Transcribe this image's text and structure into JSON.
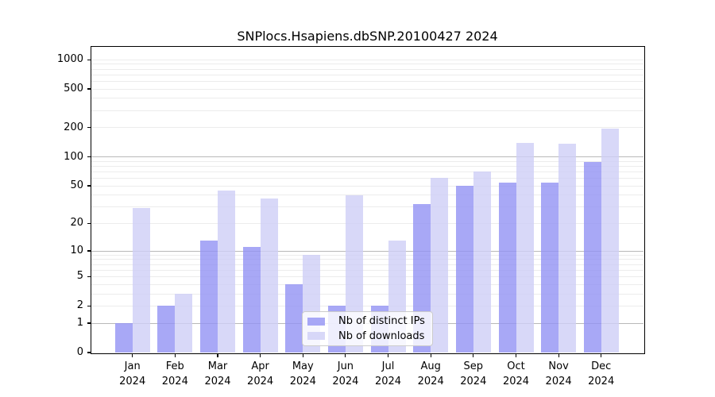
{
  "title": "SNPlocs.Hsapiens.dbSNP.20100427 2024",
  "legend": {
    "items": [
      {
        "label": "Nb of distinct IPs",
        "color": "rgba(146,146,244,0.8)"
      },
      {
        "label": "Nb of downloads",
        "color": "rgba(206,206,246,0.8)"
      }
    ]
  },
  "y_axis": {
    "tick_labels": [
      "0",
      "1",
      "2",
      "5",
      "10",
      "20",
      "50",
      "100",
      "200",
      "500",
      "1000"
    ]
  },
  "x_axis": {
    "year_label": "2024"
  },
  "chart_data": {
    "type": "bar",
    "title": "SNPlocs.Hsapiens.dbSNP.20100427 2024",
    "categories": [
      "Jan",
      "Feb",
      "Mar",
      "Apr",
      "May",
      "Jun",
      "Jul",
      "Aug",
      "Sep",
      "Oct",
      "Nov",
      "Dec"
    ],
    "category_year": "2024",
    "series": [
      {
        "name": "Nb of distinct IPs",
        "values": [
          1,
          2,
          13,
          11,
          4,
          2,
          2,
          32,
          50,
          54,
          54,
          88
        ],
        "color": "rgba(146,146,244,0.8)"
      },
      {
        "name": "Nb of downloads",
        "values": [
          29,
          3,
          45,
          37,
          9,
          40,
          13,
          61,
          71,
          140,
          138,
          195
        ],
        "color": "rgba(206,206,246,0.8)"
      }
    ],
    "y_scale": "log1p",
    "y_ticks": [
      0,
      1,
      2,
      5,
      10,
      20,
      50,
      100,
      200,
      500,
      1000
    ],
    "ylim": [
      0,
      1340
    ],
    "grid": "horizontal, minor ticks 2-9 per decade",
    "legend_position": "lower center"
  },
  "colors": {
    "background": "#ffffff",
    "axis": "#000000",
    "grid_minor": "#ececec",
    "grid_major": "#b9b9b9",
    "bar_ips_rendered": "#a8a8f6",
    "bar_downloads_rendered": "#d8d8f8",
    "legend_border": "#cccccc"
  }
}
